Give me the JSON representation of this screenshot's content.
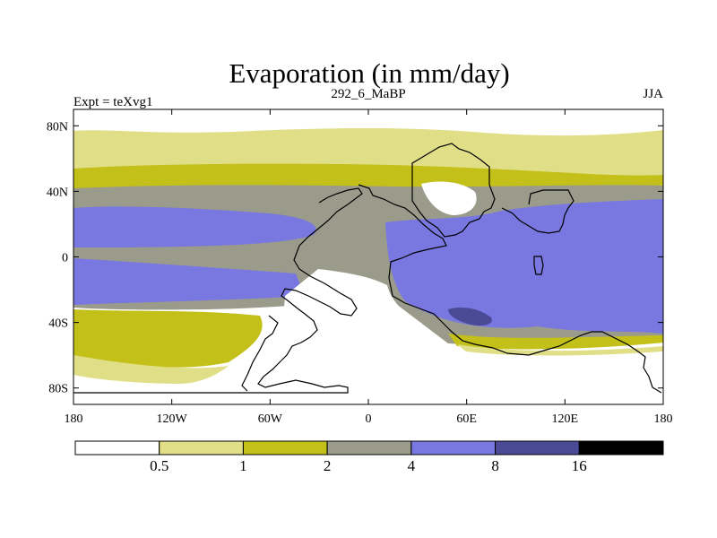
{
  "chart_data": {
    "type": "heatmap",
    "title": "Evaporation (in mm/day)",
    "left_string": "Expt = teXvg1",
    "center_string": "292_6_MaBP",
    "right_string": "JJA",
    "projection": "cylindrical equidistant",
    "lon_range": [
      -180,
      180
    ],
    "lat_range": [
      -90,
      90
    ],
    "x_ticks": [
      {
        "value": -180,
        "label": "180"
      },
      {
        "value": -120,
        "label": "120W"
      },
      {
        "value": -60,
        "label": "60W"
      },
      {
        "value": 0,
        "label": "0"
      },
      {
        "value": 60,
        "label": "60E"
      },
      {
        "value": 120,
        "label": "120E"
      },
      {
        "value": 180,
        "label": "180"
      }
    ],
    "y_ticks": [
      {
        "value": 80,
        "label": "80N"
      },
      {
        "value": 40,
        "label": "40N"
      },
      {
        "value": 0,
        "label": "0"
      },
      {
        "value": -40,
        "label": "40S"
      },
      {
        "value": -80,
        "label": "80S"
      }
    ],
    "colorbar": {
      "levels": [
        "0.5",
        "1",
        "2",
        "4",
        "8",
        "16"
      ],
      "colors": [
        "#ffffff",
        "#e0df88",
        "#c4c01a",
        "#9b9b8c",
        "#7878e0",
        "#4a4a96",
        "#000000"
      ]
    }
  }
}
